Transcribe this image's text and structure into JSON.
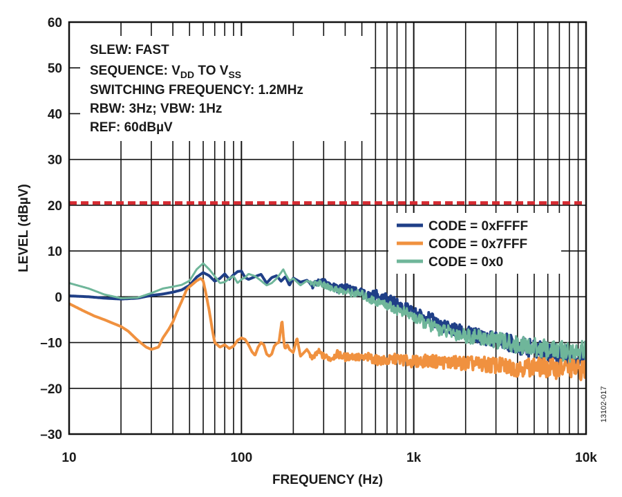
{
  "chart_data": {
    "type": "line",
    "xlabel": "FREQUENCY (Hz)",
    "ylabel": "LEVEL (dBµV)",
    "x_scale": "log",
    "xlim": [
      10,
      10000
    ],
    "ylim": [
      -30,
      60
    ],
    "grid": true,
    "x_ticks": [
      10,
      100,
      1000,
      10000
    ],
    "x_tick_labels": [
      "10",
      "100",
      "1k",
      "10k"
    ],
    "y_ticks": [
      -30,
      -20,
      -10,
      0,
      10,
      20,
      30,
      40,
      50,
      60
    ],
    "y_tick_labels": [
      "–30",
      "–20",
      "–10",
      "0",
      "10",
      "20",
      "30",
      "40",
      "50",
      "60"
    ],
    "reference_line": {
      "y": 20.5,
      "color": "#d62b32",
      "style": "dashed"
    },
    "annotations": {
      "slew": "SLEW: FAST",
      "sequence_prefix": "SEQUENCE: V",
      "sequence_sub1": "DD",
      "sequence_mid": " TO V",
      "sequence_sub2": "SS",
      "switching": "SWITCHING FREQUENCY: 1.2MHz",
      "bandwidth": "RBW: 3Hz; VBW: 1Hz",
      "ref": "REF: 60dBµV"
    },
    "legend_position": "right-middle",
    "figure_id": "13102-017",
    "series": [
      {
        "name": "CODE = 0xFFFF",
        "color": "#1f3f87",
        "stroke_width": 4,
        "noise": [
          0,
          0,
          0,
          0
        ],
        "x": [
          10,
          13,
          16,
          20,
          25,
          30,
          35,
          40,
          45,
          50,
          55,
          60,
          65,
          70,
          75,
          80,
          85,
          90,
          95,
          100,
          105,
          110,
          120,
          130,
          140,
          150,
          160,
          170,
          180,
          190,
          200,
          220,
          240,
          260,
          280,
          300,
          330,
          360,
          400,
          450,
          500,
          550,
          600,
          700,
          800,
          900,
          1000,
          1200,
          1500,
          2000,
          2500,
          3000,
          4000,
          5000,
          6000,
          7000,
          8000,
          9000,
          10000
        ],
        "values": [
          0.2,
          0.0,
          -0.3,
          -0.5,
          -0.3,
          0.3,
          0.6,
          1.0,
          1.5,
          2.5,
          4.3,
          5.3,
          4.6,
          3.4,
          4.0,
          5.0,
          3.8,
          4.8,
          5.5,
          5.6,
          4.2,
          3.8,
          4.4,
          4.9,
          3.0,
          4.2,
          4.6,
          3.4,
          4.4,
          2.5,
          4.1,
          3.2,
          3.6,
          2.4,
          3.4,
          3.2,
          2.5,
          1.8,
          2.2,
          1.2,
          0.8,
          0.2,
          0.5,
          -0.5,
          -1.5,
          -2.5,
          -3.5,
          -4.5,
          -6.5,
          -8.0,
          -8.8,
          -9.3,
          -10.5,
          -11.5,
          -12.0,
          -12.5,
          -13.0,
          -13.5,
          -13.5
        ]
      },
      {
        "name": "CODE = 0x7FFF",
        "color": "#f0913f",
        "stroke_width": 4,
        "noise": [
          0,
          0,
          0,
          0
        ],
        "x": [
          10,
          12,
          14,
          16,
          18,
          20,
          22,
          25,
          28,
          30,
          33,
          35,
          38,
          40,
          42,
          45,
          48,
          50,
          53,
          55,
          58,
          60,
          62,
          65,
          68,
          70,
          75,
          80,
          85,
          90,
          95,
          100,
          105,
          110,
          115,
          120,
          125,
          130,
          135,
          140,
          145,
          150,
          155,
          160,
          165,
          170,
          172,
          175,
          178,
          180,
          185,
          190,
          200,
          210,
          220,
          240,
          260,
          280,
          300,
          330,
          360,
          400,
          450,
          500,
          550,
          600,
          700,
          800,
          900,
          1000,
          1200,
          1500,
          2000,
          2500,
          3000,
          4000,
          5000,
          6000,
          7000,
          8000,
          9000,
          10000
        ],
        "values": [
          -1.5,
          -3.0,
          -4.2,
          -5.0,
          -5.8,
          -6.5,
          -7.5,
          -9.5,
          -11.0,
          -11.5,
          -11.0,
          -9.0,
          -7.0,
          -5.5,
          -3.5,
          -1.0,
          1.5,
          2.2,
          3.0,
          3.5,
          4.0,
          3.5,
          1.0,
          -3.0,
          -7.5,
          -10.0,
          -11.0,
          -10.5,
          -11.3,
          -10.8,
          -9.5,
          -9.0,
          -9.3,
          -10.5,
          -12.0,
          -12.8,
          -11.0,
          -10.0,
          -10.5,
          -12.5,
          -13.0,
          -12.5,
          -10.8,
          -10.2,
          -10.0,
          -6.5,
          -5.0,
          -8.5,
          -11.0,
          -11.3,
          -10.5,
          -11.5,
          -12.2,
          -9.0,
          -13.0,
          -11.5,
          -13.5,
          -12.0,
          -13.0,
          -13.5,
          -12.5,
          -13.2,
          -13.0,
          -13.5,
          -13.2,
          -13.8,
          -14.0,
          -13.5,
          -14.0,
          -14.2,
          -14.0,
          -14.3,
          -14.5,
          -14.8,
          -15.0,
          -15.5,
          -15.3,
          -15.5,
          -15.8,
          -15.5,
          -16.0,
          -16.0
        ]
      },
      {
        "name": "CODE = 0x0",
        "color": "#6fb69a",
        "stroke_width": 3,
        "noise": [
          0,
          0,
          0,
          0
        ],
        "x": [
          10,
          13,
          16,
          20,
          25,
          30,
          35,
          40,
          45,
          50,
          55,
          60,
          65,
          70,
          75,
          80,
          85,
          90,
          95,
          100,
          105,
          110,
          120,
          130,
          140,
          150,
          160,
          170,
          175,
          180,
          190,
          200,
          220,
          240,
          260,
          280,
          300,
          330,
          360,
          400,
          450,
          500,
          550,
          600,
          700,
          800,
          900,
          1000,
          1200,
          1500,
          2000,
          2500,
          3000,
          4000,
          5000,
          6000,
          7000,
          8000,
          9000,
          10000
        ],
        "values": [
          3.0,
          1.8,
          0.5,
          -0.3,
          -0.2,
          0.8,
          1.8,
          2.2,
          2.6,
          3.5,
          6.0,
          7.3,
          6.0,
          4.5,
          3.0,
          3.2,
          4.0,
          4.5,
          3.0,
          3.8,
          4.2,
          5.0,
          4.5,
          3.5,
          2.5,
          3.0,
          4.0,
          5.3,
          6.0,
          5.0,
          3.5,
          4.0,
          2.5,
          3.5,
          2.8,
          3.0,
          2.5,
          2.0,
          1.5,
          1.0,
          0.8,
          0.5,
          -0.5,
          -1.0,
          -1.8,
          -2.8,
          -3.5,
          -4.5,
          -6.0,
          -7.5,
          -8.5,
          -9.0,
          -9.5,
          -10.5,
          -11.0,
          -11.5,
          -11.8,
          -12.0,
          -12.0,
          -11.5
        ]
      }
    ]
  }
}
